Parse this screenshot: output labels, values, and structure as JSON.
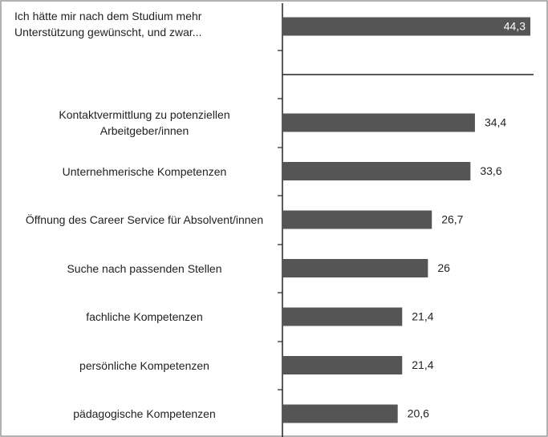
{
  "chart_data": {
    "type": "bar",
    "orientation": "horizontal",
    "categories": [
      "Ich hätte mir nach dem Studium mehr Unterstützung gewünscht, und zwar...",
      "Kontaktvermittlung zu potenziellen Arbeitgeber/innen",
      "Unternehmerische Kompetenzen",
      "Öffnung des Career Service für Absolvent/innen",
      "Suche nach passenden Stellen",
      "fachliche Kompetenzen",
      "persönliche Kompetenzen",
      "pädagogische Kompetenzen"
    ],
    "values": [
      44.3,
      34.4,
      33.6,
      26.7,
      26,
      21.4,
      21.4,
      20.6
    ],
    "value_labels": [
      "44,3",
      "34,4",
      "33,6",
      "26,7",
      "26",
      "21,4",
      "21,4",
      "20,6"
    ],
    "color": "#555555"
  }
}
